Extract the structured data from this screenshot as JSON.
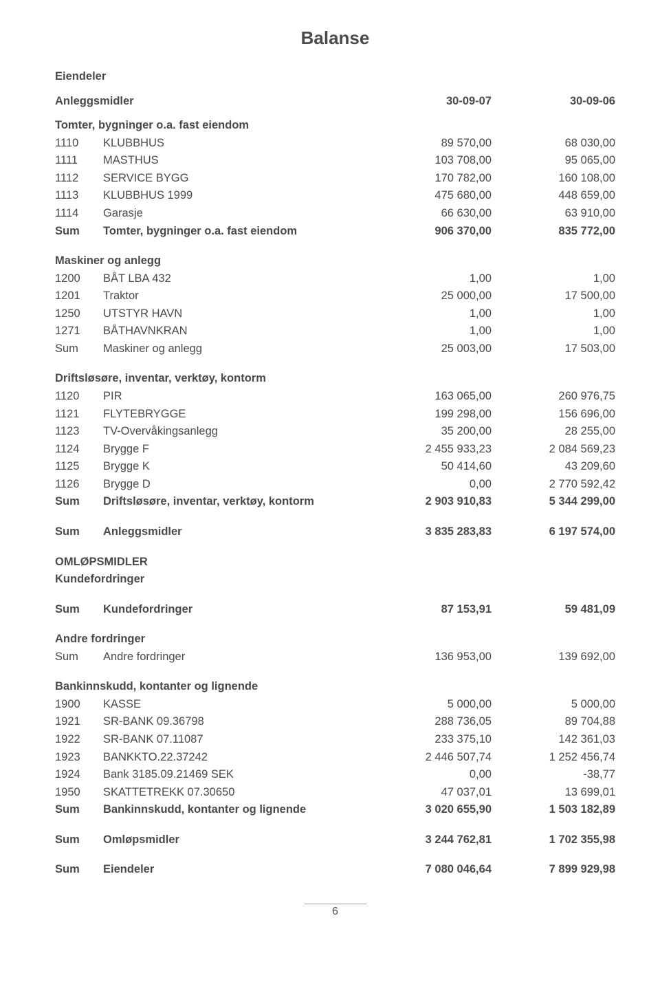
{
  "title": "Balanse",
  "header": {
    "eiendeler": "Eiendeler",
    "anleggsmidler": "Anleggsmidler",
    "col1": "30-09-07",
    "col2": "30-09-06"
  },
  "tomter": {
    "heading": "Tomter, bygninger o.a. fast eiendom",
    "rows": [
      {
        "id": "1110",
        "name": "KLUBBHUS",
        "v1": "89 570,00",
        "v2": "68 030,00"
      },
      {
        "id": "1111",
        "name": "MASTHUS",
        "v1": "103 708,00",
        "v2": "95 065,00"
      },
      {
        "id": "1112",
        "name": "SERVICE BYGG",
        "v1": "170 782,00",
        "v2": "160 108,00"
      },
      {
        "id": "1113",
        "name": "KLUBBHUS 1999",
        "v1": "475 680,00",
        "v2": "448 659,00"
      },
      {
        "id": "1114",
        "name": "Garasje",
        "v1": "66 630,00",
        "v2": "63 910,00"
      }
    ],
    "sum": {
      "id": "Sum",
      "name": "Tomter, bygninger o.a. fast eiendom",
      "v1": "906 370,00",
      "v2": "835 772,00"
    }
  },
  "maskiner": {
    "heading": "Maskiner og anlegg",
    "rows": [
      {
        "id": "1200",
        "name": "BÅT LBA 432",
        "v1": "1,00",
        "v2": "1,00"
      },
      {
        "id": "1201",
        "name": "Traktor",
        "v1": "25 000,00",
        "v2": "17 500,00"
      },
      {
        "id": "1250",
        "name": "UTSTYR HAVN",
        "v1": "1,00",
        "v2": "1,00"
      },
      {
        "id": "1271",
        "name": "BÅTHAVNKRAN",
        "v1": "1,00",
        "v2": "1,00"
      }
    ],
    "sum": {
      "id": "Sum",
      "name": "Maskiner og anlegg",
      "v1": "25 003,00",
      "v2": "17 503,00"
    }
  },
  "drift": {
    "heading": "Driftsløsøre, inventar, verktøy, kontorm",
    "rows": [
      {
        "id": "1120",
        "name": "PIR",
        "v1": "163 065,00",
        "v2": "260 976,75"
      },
      {
        "id": "1121",
        "name": "FLYTEBRYGGE",
        "v1": "199 298,00",
        "v2": "156 696,00"
      },
      {
        "id": "1123",
        "name": "TV-Overvåkingsanlegg",
        "v1": "35 200,00",
        "v2": "28 255,00"
      },
      {
        "id": "1124",
        "name": "Brygge F",
        "v1": "2 455 933,23",
        "v2": "2 084 569,23"
      },
      {
        "id": "1125",
        "name": "Brygge K",
        "v1": "50 414,60",
        "v2": "43 209,60"
      },
      {
        "id": "1126",
        "name": "Brygge D",
        "v1": "0,00",
        "v2": "2 770 592,42"
      }
    ],
    "sum": {
      "id": "Sum",
      "name": "Driftsløsøre, inventar, verktøy, kontorm",
      "v1": "2 903 910,83",
      "v2": "5 344 299,00"
    }
  },
  "sum_anlegg": {
    "id": "Sum",
    "name": "Anleggsmidler",
    "v1": "3 835 283,83",
    "v2": "6 197 574,00"
  },
  "omlop": {
    "h1": "OMLØPSMIDLER",
    "h2": "Kundefordringer"
  },
  "sum_kunde": {
    "id": "Sum",
    "name": "Kundefordringer",
    "v1": "87 153,91",
    "v2": "59 481,09"
  },
  "andre": {
    "heading": "Andre fordringer",
    "sum": {
      "id": "Sum",
      "name": "Andre fordringer",
      "v1": "136 953,00",
      "v2": "139 692,00"
    }
  },
  "bank": {
    "heading": "Bankinnskudd, kontanter og lignende",
    "rows": [
      {
        "id": "1900",
        "name": "KASSE",
        "v1": "5 000,00",
        "v2": "5 000,00"
      },
      {
        "id": "1921",
        "name": "SR-BANK 09.36798",
        "v1": "288 736,05",
        "v2": "89 704,88"
      },
      {
        "id": "1922",
        "name": "SR-BANK 07.11087",
        "v1": "233 375,10",
        "v2": "142 361,03"
      },
      {
        "id": "1923",
        "name": "BANKKTO.22.37242",
        "v1": "2 446 507,74",
        "v2": "1 252 456,74"
      },
      {
        "id": "1924",
        "name": "Bank 3185.09.21469 SEK",
        "v1": "0,00",
        "v2": "-38,77"
      },
      {
        "id": "1950",
        "name": "SKATTETREKK 07.30650",
        "v1": "47 037,01",
        "v2": "13 699,01"
      }
    ],
    "sum": {
      "id": "Sum",
      "name": "Bankinnskudd, kontanter og lignende",
      "v1": "3 020 655,90",
      "v2": "1 503 182,89"
    }
  },
  "sum_omlop": {
    "id": "Sum",
    "name": "Omløpsmidler",
    "v1": "3 244 762,81",
    "v2": "1 702 355,98"
  },
  "sum_eiendeler": {
    "id": "Sum",
    "name": "Eiendeler",
    "v1": "7 080 046,64",
    "v2": "7 899 929,98"
  },
  "page_number": "6"
}
